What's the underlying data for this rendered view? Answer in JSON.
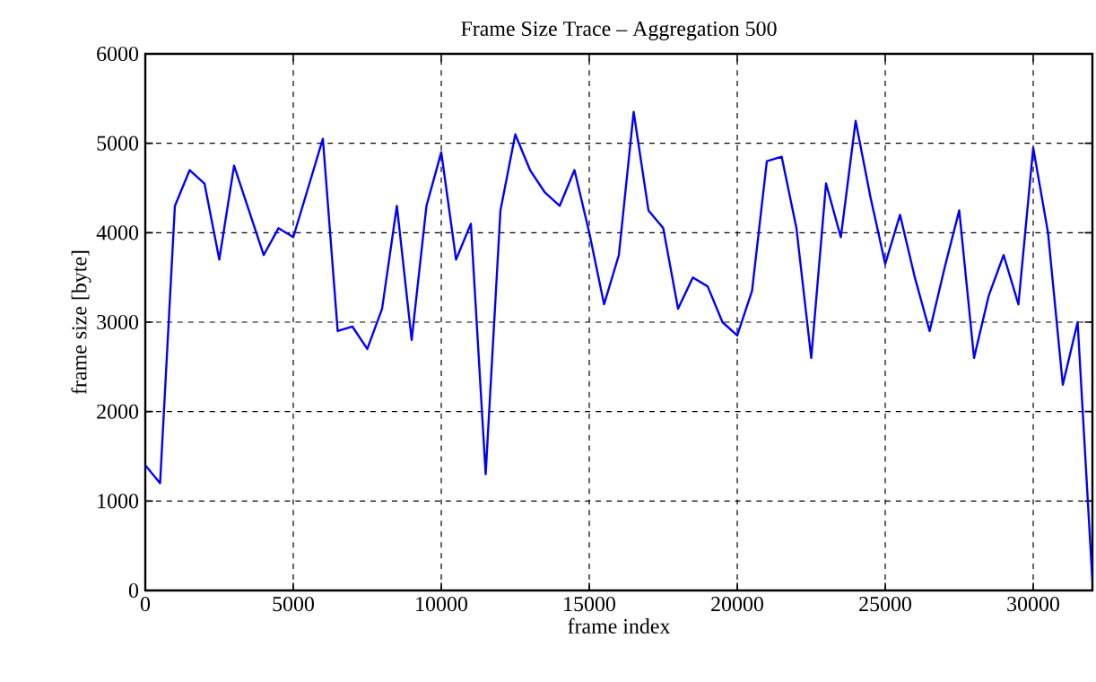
{
  "chart_data": {
    "type": "line",
    "title": "Frame Size Trace – Aggregation 500",
    "xlabel": "frame index",
    "ylabel": "frame size [byte]",
    "x": [
      0,
      500,
      1000,
      1500,
      2000,
      2500,
      3000,
      3500,
      4000,
      4500,
      5000,
      5500,
      6000,
      6500,
      7000,
      7500,
      8000,
      8500,
      9000,
      9500,
      10000,
      10500,
      11000,
      11500,
      12000,
      12500,
      13000,
      13500,
      14000,
      14500,
      15000,
      15500,
      16000,
      16500,
      17000,
      17500,
      18000,
      18500,
      19000,
      19500,
      20000,
      20500,
      21000,
      21500,
      22000,
      22500,
      23000,
      23500,
      24000,
      24500,
      25000,
      25500,
      26000,
      26500,
      27000,
      27500,
      28000,
      28500,
      29000,
      29500,
      30000,
      30500,
      31000,
      31500,
      32000
    ],
    "series": [
      {
        "color": "#0000ff",
        "values": [
          1400,
          1200,
          4300,
          4700,
          4550,
          3700,
          4750,
          4250,
          3750,
          4050,
          3950,
          4500,
          5050,
          2900,
          2950,
          2700,
          3150,
          4300,
          2800,
          4300,
          4900,
          3700,
          4100,
          1300,
          4250,
          5100,
          4700,
          4450,
          4300,
          4700,
          4000,
          3200,
          3750,
          5350,
          4250,
          4050,
          3150,
          3500,
          3400,
          3000,
          2850,
          3350,
          4800,
          4850,
          4050,
          2600,
          4550,
          3950,
          5250,
          4400,
          3650,
          4200,
          3500,
          2900,
          3600,
          4250,
          2600,
          3300,
          3750,
          3200,
          4950,
          4000,
          2300,
          3000,
          100
        ]
      }
    ],
    "xlim": [
      0,
      32000
    ],
    "ylim": [
      0,
      6000
    ],
    "xticks": [
      0,
      5000,
      10000,
      15000,
      20000,
      25000,
      30000
    ],
    "yticks": [
      0,
      1000,
      2000,
      3000,
      4000,
      5000,
      6000
    ],
    "grid": true,
    "marker": "none",
    "line_style": "solid"
  }
}
